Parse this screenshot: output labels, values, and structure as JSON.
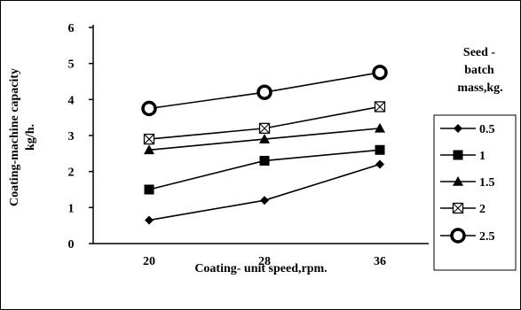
{
  "chart_data": {
    "type": "line",
    "xlabel": "Coating- unit speed,rpm.",
    "ylabel_lines": [
      "Coating-machine capacity",
      "kg/h."
    ],
    "x": [
      20,
      28,
      36
    ],
    "xticks": [
      "20",
      "28",
      "36"
    ],
    "ylim": [
      0,
      6
    ],
    "yticks": [
      "0",
      "1",
      "2",
      "3",
      "4",
      "5",
      "6"
    ],
    "grid": false,
    "legend_position": "right",
    "legend_title_lines": [
      "Seed -",
      "batch",
      "mass,kg."
    ],
    "series": [
      {
        "name": "0.5",
        "marker": "diamond",
        "values": [
          0.65,
          1.2,
          2.2
        ]
      },
      {
        "name": "1",
        "marker": "square",
        "values": [
          1.5,
          2.3,
          2.6
        ]
      },
      {
        "name": "1.5",
        "marker": "triangle",
        "values": [
          2.6,
          2.9,
          3.2
        ]
      },
      {
        "name": "2",
        "marker": "boxed-x",
        "values": [
          2.9,
          3.2,
          3.8
        ]
      },
      {
        "name": "2.5",
        "marker": "open-circle",
        "values": [
          3.75,
          4.2,
          4.75
        ]
      }
    ]
  }
}
